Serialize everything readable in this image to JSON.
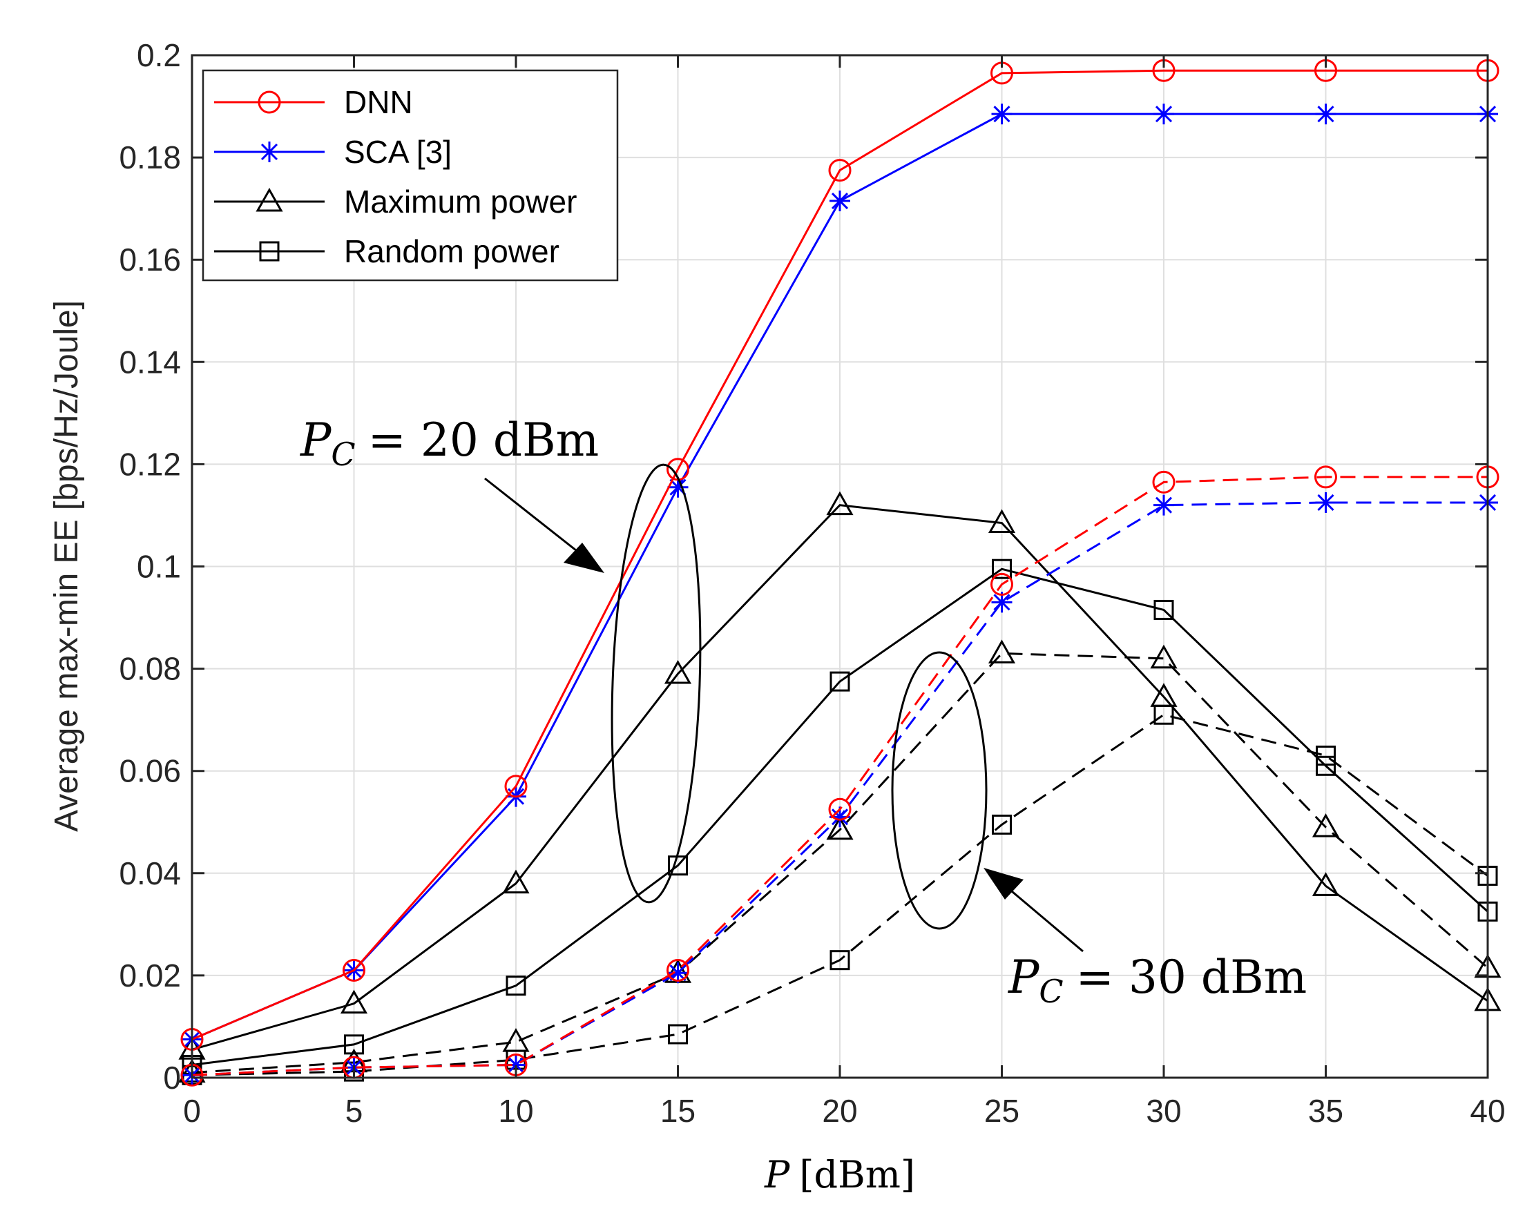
{
  "chart_data": {
    "type": "line",
    "xlabel_italic": "P",
    "xlabel_unit": "[dBm]",
    "ylabel": "Average max-min EE [bps/Hz/Joule]",
    "xlim": [
      0,
      40
    ],
    "ylim": [
      0,
      0.2
    ],
    "xticks": [
      0,
      5,
      10,
      15,
      20,
      25,
      30,
      35,
      40
    ],
    "xtick_labels": [
      "0",
      "5",
      "10",
      "15",
      "20",
      "25",
      "30",
      "35",
      "40"
    ],
    "yticks": [
      0,
      0.02,
      0.04,
      0.06,
      0.08,
      0.1,
      0.12,
      0.14,
      0.16,
      0.18,
      0.2
    ],
    "ytick_labels": [
      "0",
      "0.02",
      "0.04",
      "0.06",
      "0.08",
      "0.1",
      "0.12",
      "0.14",
      "0.16",
      "0.18",
      "0.2"
    ],
    "grid": true,
    "legend_position": "top-left",
    "x": [
      0,
      5,
      10,
      15,
      20,
      25,
      30,
      35,
      40
    ],
    "legend": [
      {
        "label": "DNN",
        "color": "#ff0000",
        "marker": "circle"
      },
      {
        "label": "SCA [3]",
        "color": "#0000ff",
        "marker": "star"
      },
      {
        "label": "Maximum power",
        "color": "#000000",
        "marker": "triangle"
      },
      {
        "label": "Random power",
        "color": "#000000",
        "marker": "square"
      }
    ],
    "series": [
      {
        "name": "DNN",
        "condition": "P_C = 20 dBm",
        "color": "#ff0000",
        "marker": "circle",
        "dash": "solid",
        "values": [
          0.0075,
          0.021,
          0.057,
          0.119,
          0.1775,
          0.1965,
          0.197,
          0.197,
          0.197
        ]
      },
      {
        "name": "SCA [3]",
        "condition": "P_C = 20 dBm",
        "color": "#0000ff",
        "marker": "star",
        "dash": "solid",
        "values": [
          0.0075,
          0.021,
          0.055,
          0.1155,
          0.1715,
          0.1885,
          0.1885,
          0.1885,
          0.1885
        ]
      },
      {
        "name": "Maximum power",
        "condition": "P_C = 20 dBm",
        "color": "#000000",
        "marker": "triangle",
        "dash": "solid",
        "values": [
          0.0055,
          0.0145,
          0.038,
          0.079,
          0.112,
          0.1085,
          0.0745,
          0.0375,
          0.015
        ]
      },
      {
        "name": "Random power",
        "condition": "P_C = 20 dBm",
        "color": "#000000",
        "marker": "square",
        "dash": "solid",
        "values": [
          0.0025,
          0.0065,
          0.018,
          0.0415,
          0.0775,
          0.0995,
          0.0915,
          0.061,
          0.0325
        ]
      },
      {
        "name": "DNN",
        "condition": "P_C = 30 dBm",
        "color": "#ff0000",
        "marker": "circle",
        "dash": "dashed",
        "values": [
          0.0005,
          0.002,
          0.0025,
          0.021,
          0.0525,
          0.0965,
          0.1165,
          0.1175,
          0.1175
        ]
      },
      {
        "name": "SCA [3]",
        "condition": "P_C = 30 dBm",
        "color": "#0000ff",
        "marker": "star",
        "dash": "dashed",
        "values": [
          0.0005,
          0.002,
          0.0025,
          0.0205,
          0.051,
          0.093,
          0.112,
          0.1125,
          0.1125
        ]
      },
      {
        "name": "Maximum power",
        "condition": "P_C = 30 dBm",
        "color": "#000000",
        "marker": "triangle",
        "dash": "dashed",
        "values": [
          0.001,
          0.003,
          0.007,
          0.0205,
          0.0485,
          0.083,
          0.082,
          0.049,
          0.0215
        ]
      },
      {
        "name": "Random power",
        "condition": "P_C = 30 dBm",
        "color": "#000000",
        "marker": "square",
        "dash": "dashed",
        "values": [
          0.0005,
          0.0012,
          0.0035,
          0.0085,
          0.023,
          0.0495,
          0.071,
          0.063,
          0.0395
        ]
      }
    ],
    "annotations": [
      {
        "name": "pc-20",
        "symbol": "P",
        "subscript": "C",
        "equation": "= 20 dBm"
      },
      {
        "name": "pc-30",
        "symbol": "P",
        "subscript": "C",
        "equation": "= 30 dBm"
      }
    ]
  }
}
